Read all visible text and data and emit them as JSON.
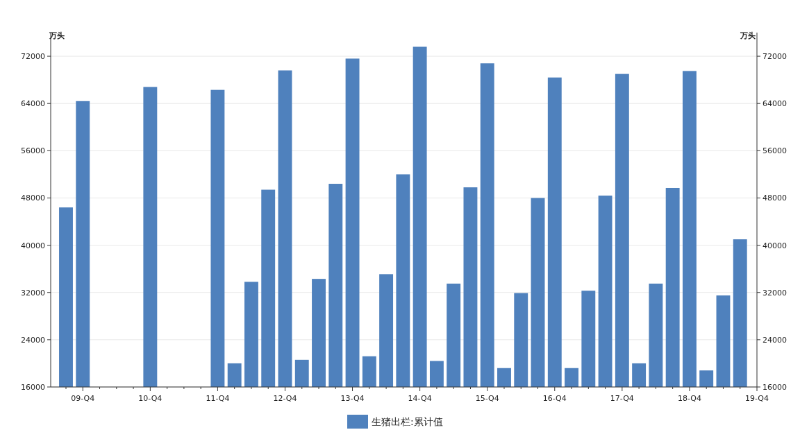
{
  "chart_data": {
    "type": "bar",
    "ylabel": "万头",
    "y2label": "万头",
    "categories": [
      null,
      "09-Q4",
      null,
      null,
      null,
      "10-Q4",
      null,
      null,
      null,
      "11-Q4",
      null,
      null,
      null,
      "12-Q4",
      null,
      null,
      null,
      "13-Q4",
      null,
      null,
      null,
      "14-Q4",
      null,
      null,
      null,
      "15-Q4",
      null,
      null,
      null,
      "16-Q4",
      null,
      null,
      null,
      "17-Q4",
      null,
      null,
      null,
      "18-Q4",
      null,
      null,
      null,
      "19-Q4"
    ],
    "series": [
      {
        "name": "生猪出栏:累计值",
        "color": "#4f81bd",
        "values": [
          46400,
          64400,
          null,
          null,
          null,
          66800,
          null,
          null,
          null,
          66300,
          20000,
          33800,
          49400,
          69600,
          20600,
          34300,
          50400,
          71600,
          21200,
          35100,
          52000,
          73600,
          20400,
          33500,
          49800,
          70800,
          19200,
          31900,
          48000,
          68400,
          19200,
          32300,
          48400,
          69000,
          20000,
          33500,
          49700,
          69500,
          18800,
          31500,
          41000,
          null
        ]
      }
    ],
    "ylim": [
      16000,
      76000
    ],
    "yticks": [
      16000,
      24000,
      32000,
      40000,
      48000,
      56000,
      64000,
      72000
    ],
    "y2lim": [
      16000,
      76000
    ],
    "y2ticks": [
      16000,
      24000,
      32000,
      40000,
      48000,
      56000,
      64000,
      72000
    ],
    "grid": "y",
    "legend": "bottom"
  }
}
